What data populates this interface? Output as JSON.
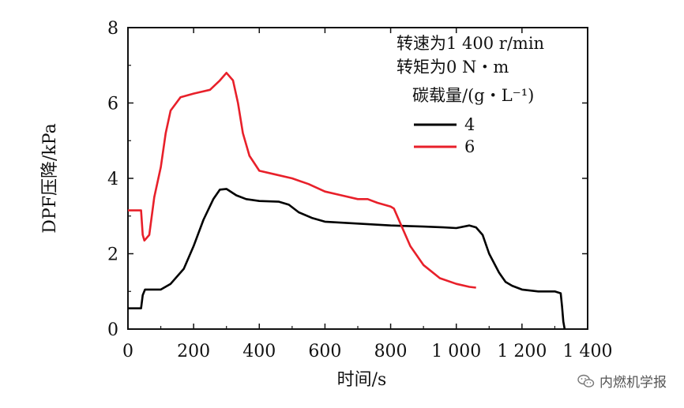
{
  "chart_data": {
    "type": "line",
    "xlabel": "时间/s",
    "ylabel": "DPF压降/kPa",
    "xlim": [
      0,
      1400
    ],
    "ylim": [
      0,
      8
    ],
    "xticks": [
      0,
      200,
      400,
      600,
      800,
      1000,
      1200,
      1400
    ],
    "xtick_labels": [
      "0",
      "200",
      "400",
      "600",
      "800",
      "1 000",
      "1 200",
      "1 400"
    ],
    "yticks": [
      0,
      2,
      4,
      6,
      8
    ],
    "ytick_labels": [
      "0",
      "2",
      "4",
      "6",
      "8"
    ],
    "annotations": [
      "转速为1 400 r/min",
      "转矩为0 N・m"
    ],
    "legend_title": "碳载量/(g・L⁻¹)",
    "legend_location": "top-right",
    "series": [
      {
        "name": "4",
        "color": "#000000",
        "points": [
          [
            0,
            0.55
          ],
          [
            40,
            0.55
          ],
          [
            45,
            0.9
          ],
          [
            52,
            1.05
          ],
          [
            100,
            1.05
          ],
          [
            130,
            1.2
          ],
          [
            170,
            1.6
          ],
          [
            200,
            2.2
          ],
          [
            230,
            2.9
          ],
          [
            260,
            3.45
          ],
          [
            280,
            3.7
          ],
          [
            300,
            3.72
          ],
          [
            330,
            3.55
          ],
          [
            360,
            3.45
          ],
          [
            400,
            3.4
          ],
          [
            460,
            3.38
          ],
          [
            490,
            3.3
          ],
          [
            520,
            3.1
          ],
          [
            560,
            2.95
          ],
          [
            600,
            2.85
          ],
          [
            700,
            2.8
          ],
          [
            800,
            2.75
          ],
          [
            900,
            2.72
          ],
          [
            960,
            2.7
          ],
          [
            1000,
            2.68
          ],
          [
            1040,
            2.75
          ],
          [
            1060,
            2.7
          ],
          [
            1080,
            2.5
          ],
          [
            1100,
            2.0
          ],
          [
            1130,
            1.5
          ],
          [
            1150,
            1.25
          ],
          [
            1170,
            1.15
          ],
          [
            1200,
            1.05
          ],
          [
            1250,
            1.0
          ],
          [
            1300,
            1.0
          ],
          [
            1318,
            0.95
          ],
          [
            1322,
            0.6
          ],
          [
            1326,
            0.2
          ],
          [
            1330,
            0
          ]
        ]
      },
      {
        "name": "6",
        "color": "#e8202a",
        "points": [
          [
            0,
            3.15
          ],
          [
            40,
            3.15
          ],
          [
            45,
            2.5
          ],
          [
            50,
            2.35
          ],
          [
            65,
            2.5
          ],
          [
            80,
            3.5
          ],
          [
            100,
            4.3
          ],
          [
            115,
            5.2
          ],
          [
            130,
            5.8
          ],
          [
            160,
            6.15
          ],
          [
            200,
            6.25
          ],
          [
            250,
            6.35
          ],
          [
            280,
            6.6
          ],
          [
            300,
            6.8
          ],
          [
            320,
            6.6
          ],
          [
            335,
            6.0
          ],
          [
            350,
            5.2
          ],
          [
            370,
            4.6
          ],
          [
            400,
            4.2
          ],
          [
            450,
            4.1
          ],
          [
            500,
            4.0
          ],
          [
            550,
            3.85
          ],
          [
            600,
            3.65
          ],
          [
            650,
            3.55
          ],
          [
            700,
            3.45
          ],
          [
            730,
            3.45
          ],
          [
            760,
            3.35
          ],
          [
            800,
            3.25
          ],
          [
            810,
            3.2
          ],
          [
            830,
            2.8
          ],
          [
            860,
            2.2
          ],
          [
            900,
            1.7
          ],
          [
            950,
            1.35
          ],
          [
            1000,
            1.2
          ],
          [
            1040,
            1.12
          ],
          [
            1060,
            1.1
          ]
        ]
      }
    ]
  },
  "watermark": {
    "text": "内燃机学报",
    "icon": "wechat-icon"
  }
}
